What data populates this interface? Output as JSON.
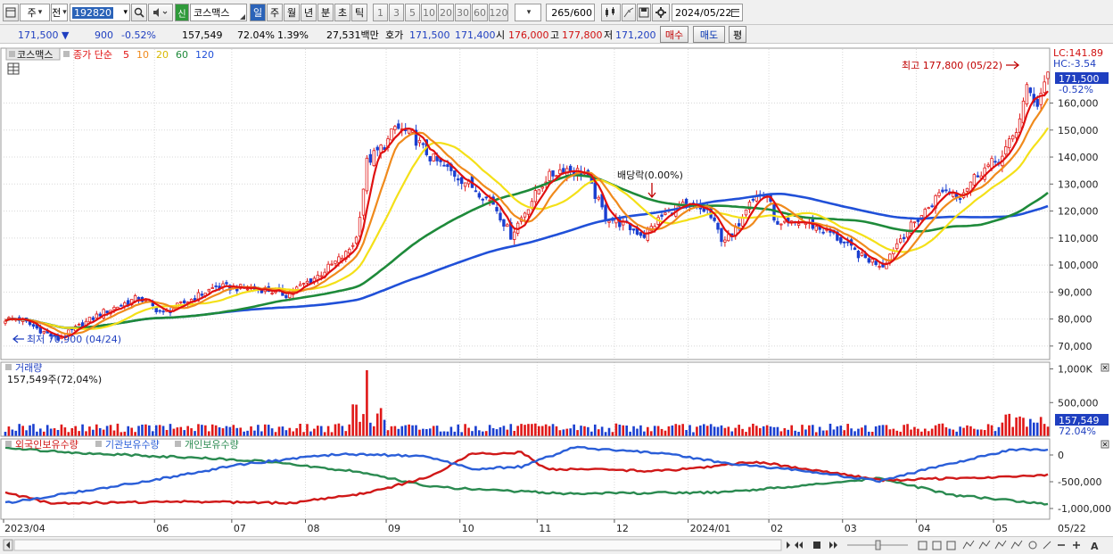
{
  "toolbar": {
    "period_unit": "주",
    "prev_label": "전",
    "code": "192820",
    "market_tag": "신",
    "stock_name": "코스맥스",
    "periods": [
      "일",
      "주",
      "월",
      "년",
      "분",
      "초",
      "틱"
    ],
    "selected_period": "일",
    "intervals": [
      "1",
      "3",
      "5",
      "10",
      "20",
      "30",
      "60",
      "120"
    ],
    "count": "265",
    "count_max": "/600",
    "date": "2024/05/22"
  },
  "quote": {
    "price": "171,500",
    "change": "900",
    "change_pct": "-0.52%",
    "volume": "157,549",
    "volume_ratio": "72.04%",
    "turnover": "1.39%",
    "amount": "27,531백만",
    "bid_label": "호가",
    "ask": "171,500",
    "bid": "171,400",
    "open_label": "시",
    "open": "176,000",
    "high_label": "고",
    "high": "177,800",
    "low_label": "저",
    "low": "171,200",
    "buy_label": "매수",
    "sell_label": "매도",
    "eval_label": "평"
  },
  "chart_data": {
    "type": "candlestick",
    "legend": {
      "name": "코스맥스",
      "price_label": "종가 단순",
      "ma_periods": [
        {
          "period": "5",
          "color": "#e01010"
        },
        {
          "period": "10",
          "color": "#f08a1c"
        },
        {
          "period": "20",
          "color": "#f4e018"
        },
        {
          "period": "60",
          "color": "#1e8a3a"
        },
        {
          "period": "120",
          "color": "#2050d8"
        }
      ]
    },
    "price_axis": [
      "160,000",
      "150,000",
      "140,000",
      "130,000",
      "120,000",
      "110,000",
      "100,000",
      "90,000",
      "80,000",
      "70,000"
    ],
    "ylim": [
      65000,
      180000
    ],
    "current_price": "171,500",
    "current_change": "-0.52%",
    "lc": "LC:141.89",
    "hc": "HC:-3.54",
    "annotations": {
      "high": "최고 177,800 (05/22)",
      "low": "최저 70,900 (04/24)",
      "dividend": "배당락(0.00%)"
    },
    "x_labels": [
      "2023/04",
      "06",
      "07",
      "08",
      "09",
      "10",
      "11",
      "12",
      "2024/01",
      "02",
      "03",
      "04",
      "05",
      "05/22"
    ],
    "anchors": [
      {
        "x": "2023/04/07",
        "close": 80000
      },
      {
        "x": "2023/04/24",
        "close": 72500
      },
      {
        "x": "2023/05/10",
        "close": 82000
      },
      {
        "x": "2023/05/25",
        "close": 88000
      },
      {
        "x": "2023/06/05",
        "close": 82000
      },
      {
        "x": "2023/06/26",
        "close": 92000
      },
      {
        "x": "2023/07/14",
        "close": 91000
      },
      {
        "x": "2023/07/24",
        "close": 89000
      },
      {
        "x": "2023/08/04",
        "close": 96000
      },
      {
        "x": "2023/08/16",
        "close": 104000
      },
      {
        "x": "2023/08/21",
        "close": 110000
      },
      {
        "x": "2023/08/24",
        "close": 138000
      },
      {
        "x": "2023/09/01",
        "close": 146000
      },
      {
        "x": "2023/09/05",
        "close": 151000
      },
      {
        "x": "2023/09/12",
        "close": 148000
      },
      {
        "x": "2023/09/19",
        "close": 140000
      },
      {
        "x": "2023/10/04",
        "close": 130000
      },
      {
        "x": "2023/10/13",
        "close": 123000
      },
      {
        "x": "2023/10/20",
        "close": 111000
      },
      {
        "x": "2023/10/27",
        "close": 122000
      },
      {
        "x": "2023/11/03",
        "close": 132000
      },
      {
        "x": "2023/11/10",
        "close": 136000
      },
      {
        "x": "2023/11/20",
        "close": 134000
      },
      {
        "x": "2023/11/28",
        "close": 118000
      },
      {
        "x": "2023/12/05",
        "close": 115000
      },
      {
        "x": "2023/12/13",
        "close": 111000
      },
      {
        "x": "2023/12/20",
        "close": 118000
      },
      {
        "x": "2023/12/27",
        "close": 122000
      },
      {
        "x": "2024/01/08",
        "close": 120000
      },
      {
        "x": "2024/01/12",
        "close": 110000
      },
      {
        "x": "2024/01/17",
        "close": 110000
      },
      {
        "x": "2024/01/24",
        "close": 125000
      },
      {
        "x": "2024/01/31",
        "close": 126000
      },
      {
        "x": "2024/02/05",
        "close": 114000
      },
      {
        "x": "2024/02/14",
        "close": 116000
      },
      {
        "x": "2024/02/26",
        "close": 112000
      },
      {
        "x": "2024/03/08",
        "close": 103000
      },
      {
        "x": "2024/03/18",
        "close": 100000
      },
      {
        "x": "2024/03/25",
        "close": 110000
      },
      {
        "x": "2024/04/03",
        "close": 120000
      },
      {
        "x": "2024/04/10",
        "close": 128000
      },
      {
        "x": "2024/04/17",
        "close": 126000
      },
      {
        "x": "2024/04/24",
        "close": 134000
      },
      {
        "x": "2024/05/03",
        "close": 140000
      },
      {
        "x": "2024/05/09",
        "close": 150000
      },
      {
        "x": "2024/05/14",
        "close": 165000
      },
      {
        "x": "2024/05/17",
        "close": 160000
      },
      {
        "x": "2024/05/22",
        "close": 171500
      }
    ]
  },
  "volume_panel": {
    "title": "거래량",
    "value_label": "157,549주(72,04%)",
    "axis": [
      "1,000K",
      "500,000"
    ],
    "current": "157,549",
    "current_pct": "72.04%",
    "ylim": [
      0,
      1100000
    ],
    "spike": "2023/08/24"
  },
  "holdings_panel": {
    "series": [
      {
        "name": "외국인보유수량",
        "color": "#d01818"
      },
      {
        "name": "기관보유수량",
        "color": "#2a5ed8"
      },
      {
        "name": "개인보유수량",
        "color": "#2a8a50"
      }
    ],
    "axis": [
      "0",
      "-500,000",
      "-1,000,000"
    ],
    "ylim": [
      -1200000,
      300000
    ],
    "foreign": [
      {
        "x": "2023/04/03",
        "v": -700000
      },
      {
        "x": "2023/04/20",
        "v": -900000
      },
      {
        "x": "2023/06/15",
        "v": -870000
      },
      {
        "x": "2023/07/25",
        "v": -900000
      },
      {
        "x": "2023/08/25",
        "v": -700000
      },
      {
        "x": "2023/09/20",
        "v": -380000
      },
      {
        "x": "2023/10/04",
        "v": 10000
      },
      {
        "x": "2023/10/25",
        "v": 50000
      },
      {
        "x": "2023/11/05",
        "v": -260000
      },
      {
        "x": "2023/12/20",
        "v": -300000
      },
      {
        "x": "2024/01/26",
        "v": -130000
      },
      {
        "x": "2024/02/19",
        "v": -280000
      },
      {
        "x": "2024/03/18",
        "v": -470000
      },
      {
        "x": "2024/04/26",
        "v": -420000
      },
      {
        "x": "2024/05/22",
        "v": -380000
      }
    ],
    "institution": [
      {
        "x": "2023/04/03",
        "v": -900000
      },
      {
        "x": "2023/05/15",
        "v": -600000
      },
      {
        "x": "2023/07/10",
        "v": -150000
      },
      {
        "x": "2023/08/15",
        "v": 20000
      },
      {
        "x": "2023/09/15",
        "v": -20000
      },
      {
        "x": "2023/10/05",
        "v": -260000
      },
      {
        "x": "2023/10/25",
        "v": -220000
      },
      {
        "x": "2023/11/15",
        "v": 140000
      },
      {
        "x": "2023/12/20",
        "v": 30000
      },
      {
        "x": "2024/01/15",
        "v": -150000
      },
      {
        "x": "2024/02/15",
        "v": -300000
      },
      {
        "x": "2024/03/15",
        "v": -490000
      },
      {
        "x": "2024/04/10",
        "v": -190000
      },
      {
        "x": "2024/05/08",
        "v": 100000
      },
      {
        "x": "2024/05/22",
        "v": 100000
      }
    ],
    "individual": [
      {
        "x": "2023/04/03",
        "v": 130000
      },
      {
        "x": "2023/05/05",
        "v": 30000
      },
      {
        "x": "2023/07/10",
        "v": -100000
      },
      {
        "x": "2023/08/20",
        "v": -300000
      },
      {
        "x": "2023/09/20",
        "v": -600000
      },
      {
        "x": "2023/11/10",
        "v": -720000
      },
      {
        "x": "2024/01/15",
        "v": -700000
      },
      {
        "x": "2024/03/15",
        "v": -440000
      },
      {
        "x": "2024/04/15",
        "v": -750000
      },
      {
        "x": "2024/05/22",
        "v": -920000
      }
    ]
  }
}
